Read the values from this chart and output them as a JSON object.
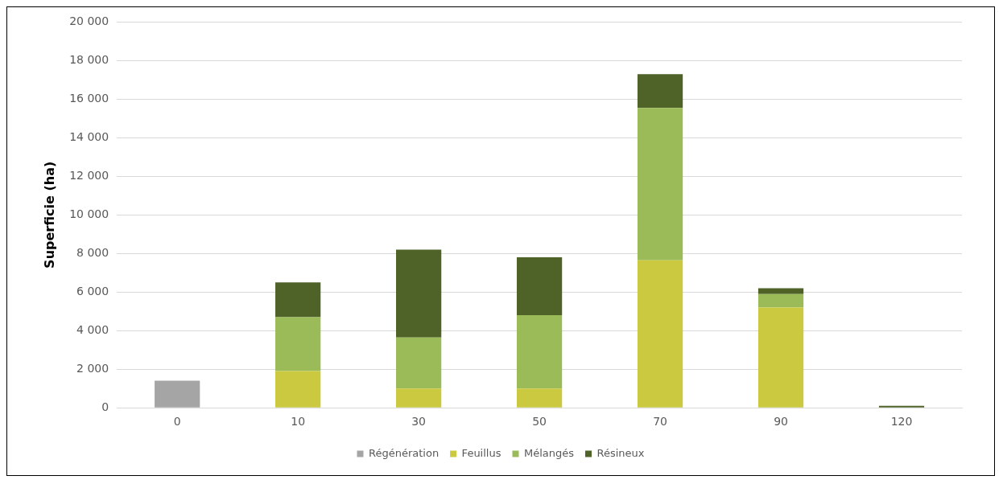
{
  "chart_data": {
    "type": "bar",
    "stacked": true,
    "ylabel": "Superficie (ha)",
    "categories": [
      "0",
      "10",
      "30",
      "50",
      "70",
      "90",
      "120"
    ],
    "series": [
      {
        "name": "Régénération",
        "color": "#a5a5a5",
        "values": [
          1400,
          null,
          null,
          null,
          null,
          null,
          null
        ]
      },
      {
        "name": "Feuillus",
        "color": "#cbc940",
        "values": [
          null,
          1900,
          1000,
          1000,
          7650,
          5200,
          null
        ]
      },
      {
        "name": "Mélangés",
        "color": "#9bbb59",
        "values": [
          null,
          2800,
          2650,
          3800,
          7900,
          700,
          null
        ]
      },
      {
        "name": "Résineux",
        "color": "#4f6228",
        "values": [
          null,
          1800,
          4550,
          3000,
          1750,
          300,
          100
        ]
      }
    ],
    "ylim": [
      0,
      20000
    ],
    "yticks": [
      {
        "value": 0,
        "label": "0"
      },
      {
        "value": 2000,
        "label": "2 000"
      },
      {
        "value": 4000,
        "label": "4 000"
      },
      {
        "value": 6000,
        "label": "6 000"
      },
      {
        "value": 8000,
        "label": "8 000"
      },
      {
        "value": 10000,
        "label": "10 000"
      },
      {
        "value": 12000,
        "label": "12 000"
      },
      {
        "value": 14000,
        "label": "14 000"
      },
      {
        "value": 16000,
        "label": "16 000"
      },
      {
        "value": 18000,
        "label": "18 000"
      },
      {
        "value": 20000,
        "label": "20 000"
      }
    ],
    "grid": "y",
    "legend": "bottom"
  }
}
